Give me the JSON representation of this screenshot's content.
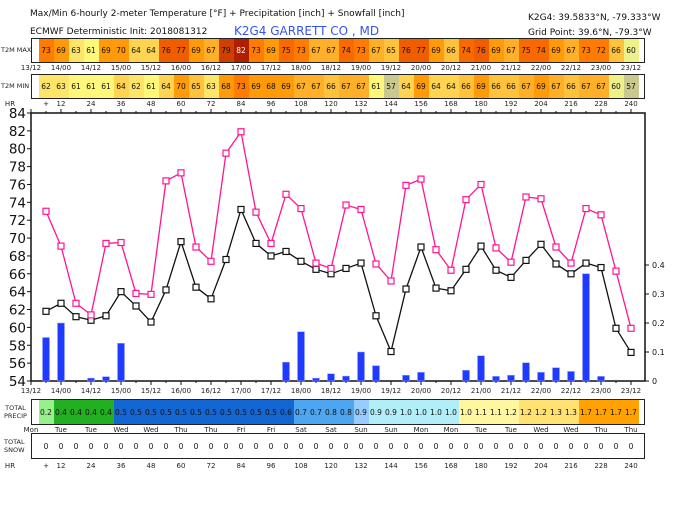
{
  "header": {
    "title": "Max/Min 6-hourly 2-meter Temperature [°F] + Precipitation [inch] + Snowfall [inch]",
    "model": "ECMWF Deterministic Init: 2018081312",
    "station": "K2G4 GARRETT CO    , MD",
    "coords": "K2G4: 39.5833°N, -79.333°W",
    "grid_point": "Grid Point: 39.6°N, -79.3°W"
  },
  "labels": {
    "t2m_max": "T2M MAX",
    "t2m_min": "T2M MIN",
    "hr": "HR",
    "plus": "+",
    "total_precip_1": "TOTAL",
    "total_precip_2": "PRECIP",
    "total_snow_1": "TOTAL",
    "total_snow_2": "SNOW"
  },
  "dates": [
    "13/12",
    "14/00",
    "14/12",
    "15/00",
    "15/12",
    "16/00",
    "16/12",
    "17/00",
    "17/12",
    "18/00",
    "18/12",
    "19/00",
    "19/12",
    "20/00",
    "20/12",
    "21/00",
    "21/12",
    "22/00",
    "22/12",
    "23/00",
    "23/12"
  ],
  "days": [
    "Mon",
    "Tue",
    "Tue",
    "Wed",
    "Wed",
    "Thu",
    "Thu",
    "Fri",
    "Fri",
    "Sat",
    "Sat",
    "Sun",
    "Sun",
    "Mon",
    "Mon",
    "Tue",
    "Tue",
    "Wed",
    "Wed",
    "Thu",
    "Thu"
  ],
  "hours": [
    "12",
    "24",
    "36",
    "48",
    "60",
    "72",
    "84",
    "96",
    "108",
    "120",
    "132",
    "144",
    "156",
    "168",
    "180",
    "192",
    "204",
    "216",
    "228",
    "240"
  ],
  "t2m_max": [
    73,
    69,
    63,
    61,
    69,
    70,
    64,
    64,
    76,
    77,
    69,
    67,
    79,
    82,
    73,
    69,
    75,
    73,
    67,
    67,
    74,
    73,
    67,
    65,
    76,
    77,
    69,
    66,
    74,
    76,
    69,
    67,
    75,
    74,
    69,
    67,
    73,
    72,
    66,
    60
  ],
  "t2m_min": [
    62,
    63,
    61,
    61,
    61,
    64,
    62,
    61,
    64,
    70,
    65,
    63,
    68,
    73,
    69,
    68,
    69,
    67,
    67,
    66,
    67,
    67,
    61,
    57,
    64,
    69,
    64,
    64,
    66,
    69,
    66,
    66,
    67,
    69,
    67,
    66,
    67,
    67,
    60,
    57
  ],
  "total_precip": [
    "0.2",
    "0.4",
    "0.4",
    "0.4",
    "0.4",
    "0.5",
    "0.5",
    "0.5",
    "0.5",
    "0.5",
    "0.5",
    "0.5",
    "0.5",
    "0.5",
    "0.5",
    "0.5",
    "0.6",
    "0.7",
    "0.7",
    "0.8",
    "0.8",
    "0.9",
    "0.9",
    "0.9",
    "1.0",
    "1.0",
    "1.0",
    "1.0",
    "1.0",
    "1.1",
    "1.1",
    "1.2",
    "1.2",
    "1.2",
    "1.3",
    "1.3",
    "1.7",
    "1.7",
    "1.7",
    "1.7"
  ],
  "total_snow": [
    "0",
    "0",
    "0",
    "0",
    "0",
    "0",
    "0",
    "0",
    "0",
    "0",
    "0",
    "0",
    "0",
    "0",
    "0",
    "0",
    "0",
    "0",
    "0",
    "0",
    "0",
    "0",
    "0",
    "0",
    "0",
    "0",
    "0",
    "0",
    "0",
    "0",
    "0",
    "0",
    "0",
    "0",
    "0",
    "0",
    "0",
    "0",
    "0",
    "0"
  ],
  "colors": {
    "max_line": "#ff1493",
    "min_line": "#111111",
    "precip_bar": "#1f3bff",
    "temp_palette": [
      [
        57,
        "#c9c98f"
      ],
      [
        60,
        "#eef08a"
      ],
      [
        61,
        "#fff77a"
      ],
      [
        63,
        "#ffe46a"
      ],
      [
        64,
        "#ffd452"
      ],
      [
        66,
        "#ffc23c"
      ],
      [
        67,
        "#ffb028"
      ],
      [
        70,
        "#ff9a08"
      ],
      [
        73,
        "#ff7c00"
      ],
      [
        75,
        "#f86a00"
      ],
      [
        77,
        "#f05c00"
      ],
      [
        79,
        "#cf4000"
      ],
      [
        82,
        "#b02000"
      ]
    ],
    "precip_groups": [
      [
        1,
        "#98f08c"
      ],
      [
        5,
        "#22b022"
      ],
      [
        17,
        "#1466d2"
      ],
      [
        21,
        "#4ea6f0"
      ],
      [
        22,
        "#98ccff"
      ],
      [
        28,
        "#b2eef8"
      ],
      [
        32,
        "#fff6a2"
      ],
      [
        36,
        "#ffe272"
      ],
      [
        40,
        "#ffa200"
      ]
    ]
  },
  "chart_data": {
    "type": "line",
    "x_hours": [
      6,
      12,
      18,
      24,
      30,
      36,
      42,
      48,
      54,
      60,
      66,
      72,
      78,
      84,
      90,
      96,
      102,
      108,
      114,
      120,
      126,
      132,
      138,
      144,
      150,
      156,
      162,
      168,
      174,
      180,
      186,
      192,
      198,
      204,
      210,
      216,
      222,
      228,
      234,
      240
    ],
    "series": [
      {
        "name": "Max temperature",
        "axis": "left",
        "values": [
          73,
          69.1,
          62.7,
          61.4,
          69.4,
          69.5,
          63.8,
          63.7,
          76.4,
          77.3,
          69.0,
          67.4,
          79.5,
          81.9,
          72.9,
          69.4,
          74.9,
          73.3,
          67.2,
          66.6,
          73.7,
          73.2,
          67.1,
          65.2,
          75.9,
          76.6,
          68.7,
          66.4,
          74.3,
          76.0,
          68.9,
          67.3,
          74.6,
          74.4,
          69.0,
          67.2,
          73.3,
          72.6,
          66.3,
          59.9
        ]
      },
      {
        "name": "Min temperature",
        "axis": "left",
        "values": [
          61.8,
          62.7,
          61.2,
          60.8,
          61.3,
          64.0,
          62.4,
          60.6,
          64.2,
          69.6,
          64.5,
          63.2,
          67.6,
          73.2,
          69.4,
          68.0,
          68.5,
          67.4,
          66.5,
          66.0,
          66.6,
          67.2,
          61.3,
          57.3,
          64.3,
          69.0,
          64.4,
          64.1,
          66.5,
          69.1,
          66.4,
          65.6,
          67.5,
          69.3,
          67.1,
          66.0,
          67.2,
          66.7,
          59.9,
          57.2
        ]
      },
      {
        "name": "Precipitation",
        "type": "bar",
        "axis": "right",
        "values": [
          0.15,
          0.2,
          0,
          0.01,
          0.015,
          0.13,
          0,
          0,
          0,
          0,
          0,
          0,
          0,
          0,
          0,
          0,
          0.065,
          0.17,
          0.01,
          0.025,
          0.017,
          0.1,
          0.053,
          0,
          0.02,
          0.03,
          0,
          0,
          0.037,
          0.087,
          0.016,
          0.02,
          0.063,
          0.03,
          0.046,
          0.033,
          0.37,
          0.016,
          0,
          0
        ]
      }
    ],
    "y_left": {
      "ylim": [
        54,
        84
      ],
      "ticks": [
        "54",
        "56",
        "58",
        "60",
        "62",
        "64",
        "66",
        "68",
        "70",
        "72",
        "74",
        "76",
        "78",
        "80",
        "82",
        "84"
      ]
    },
    "y_right": {
      "ylim": [
        0,
        0.4
      ],
      "ticks": [
        "0",
        "0.1",
        "0.2",
        "0.3",
        "0.4"
      ]
    },
    "xlim_hours": [
      0,
      240
    ]
  }
}
